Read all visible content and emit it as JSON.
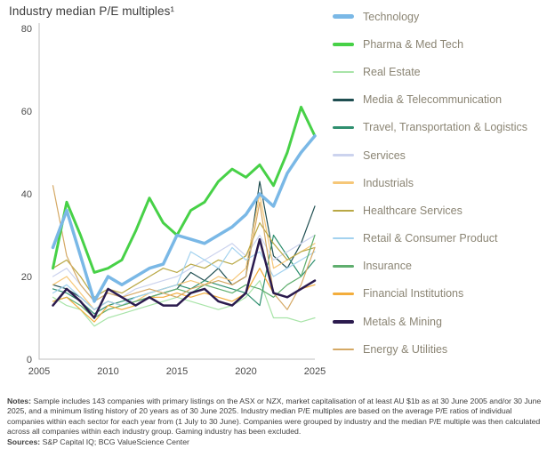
{
  "header": {
    "title": "Industry median P/E multiples¹"
  },
  "chart_data": {
    "type": "line",
    "title": "Industry median P/E multiples¹",
    "xlabel": "",
    "ylabel": "",
    "xlim": [
      2005,
      2025
    ],
    "ylim": [
      0,
      80
    ],
    "xticks": [
      2005,
      2010,
      2015,
      2020,
      2025
    ],
    "yticks": [
      0,
      20,
      40,
      60,
      80
    ],
    "grid": false,
    "legend_position": "right",
    "x": [
      2006,
      2007,
      2008,
      2009,
      2010,
      2011,
      2012,
      2013,
      2014,
      2015,
      2016,
      2017,
      2018,
      2019,
      2020,
      2021,
      2022,
      2023,
      2024,
      2025
    ],
    "series": [
      {
        "name": "Technology",
        "color": "#7ab8e6",
        "width": 3.5,
        "values": [
          27,
          36,
          25,
          14,
          20,
          18,
          20,
          22,
          23,
          30,
          29,
          28,
          30,
          32,
          35,
          40,
          37,
          45,
          50,
          54
        ]
      },
      {
        "name": "Pharma & Med Tech",
        "color": "#47d147",
        "width": 3,
        "values": [
          22,
          38,
          30,
          21,
          22,
          24,
          31,
          39,
          33,
          30,
          36,
          38,
          43,
          46,
          44,
          47,
          42,
          50,
          61,
          54
        ]
      },
      {
        "name": "Real Estate",
        "color": "#a8e4a8",
        "width": 1.2,
        "values": [
          15,
          13,
          12,
          8,
          10,
          11,
          12,
          13,
          14,
          15,
          14,
          13,
          12,
          13,
          15,
          19,
          10,
          10,
          9,
          10
        ]
      },
      {
        "name": "Media & Telecommunication",
        "color": "#1f4e51",
        "width": 1.2,
        "values": [
          18,
          17,
          15,
          12,
          14,
          13,
          14,
          15,
          16,
          17,
          21,
          19,
          22,
          18,
          20,
          43,
          25,
          22,
          28,
          37
        ]
      },
      {
        "name": "Travel, Transportation & Logistics",
        "color": "#2f8f6f",
        "width": 1.2,
        "values": [
          17,
          16,
          14,
          11,
          13,
          14,
          15,
          16,
          17,
          18,
          17,
          19,
          18,
          17,
          16,
          13,
          30,
          25,
          20,
          24
        ]
      },
      {
        "name": "Services",
        "color": "#ccd3ee",
        "width": 1.2,
        "values": [
          20,
          22,
          18,
          14,
          16,
          15,
          17,
          18,
          19,
          20,
          22,
          24,
          26,
          28,
          25,
          30,
          24,
          26,
          28,
          30
        ]
      },
      {
        "name": "Industrials",
        "color": "#f6c778",
        "width": 1.2,
        "values": [
          18,
          20,
          16,
          12,
          14,
          13,
          14,
          16,
          17,
          18,
          19,
          18,
          20,
          19,
          22,
          40,
          22,
          24,
          26,
          28
        ]
      },
      {
        "name": "Healthcare Services",
        "color": "#b9a845",
        "width": 1.2,
        "values": [
          22,
          24,
          20,
          15,
          17,
          16,
          18,
          20,
          22,
          21,
          23,
          22,
          24,
          23,
          25,
          33,
          28,
          24,
          26,
          27
        ]
      },
      {
        "name": "Retail & Consumer Product",
        "color": "#a3d2ef",
        "width": 1.2,
        "values": [
          16,
          18,
          15,
          12,
          14,
          13,
          15,
          16,
          17,
          18,
          26,
          24,
          22,
          27,
          24,
          26,
          20,
          22,
          24,
          26
        ]
      },
      {
        "name": "Insurance",
        "color": "#5fae6e",
        "width": 1.2,
        "values": [
          14,
          15,
          13,
          10,
          12,
          13,
          14,
          15,
          16,
          17,
          16,
          18,
          17,
          16,
          18,
          17,
          15,
          18,
          20,
          30
        ]
      },
      {
        "name": "Financial Institutions",
        "color": "#f3ad3c",
        "width": 1.2,
        "values": [
          14,
          15,
          12,
          9,
          13,
          12,
          13,
          15,
          15,
          16,
          15,
          16,
          15,
          14,
          16,
          22,
          16,
          15,
          17,
          18
        ]
      },
      {
        "name": "Metals & Mining",
        "color": "#2b1b4e",
        "width": 2.5,
        "values": [
          13,
          17,
          14,
          10,
          17,
          15,
          13,
          15,
          13,
          13,
          16,
          17,
          14,
          13,
          16,
          29,
          16,
          15,
          17,
          19
        ]
      },
      {
        "name": "Energy & Utilities",
        "color": "#d5a965",
        "width": 1.2,
        "values": [
          42,
          25,
          18,
          14,
          16,
          15,
          16,
          17,
          16,
          15,
          17,
          18,
          19,
          18,
          20,
          38,
          16,
          12,
          18,
          27
        ]
      }
    ]
  },
  "footer": {
    "notes_label": "Notes:",
    "notes_text": "Sample includes 143 companies with primary listings on the ASX or NZX, market capitalisation of at least AU $1b as at 30 June 2005 and/or 30 June 2025, and a minimum listing history of 20 years as of 30 June 2025. Industry median P/E multiples are based on the average P/E ratios of individual companies within each sector for each year from (1 July to 30 June). Companies were grouped by industry and the median P/E multiple was then calculated across all companies within each industry group. Gaming industry has been excluded.",
    "sources_label": "Sources:",
    "sources_text": "S&P Capital IQ; BCG ValueScience Center"
  }
}
